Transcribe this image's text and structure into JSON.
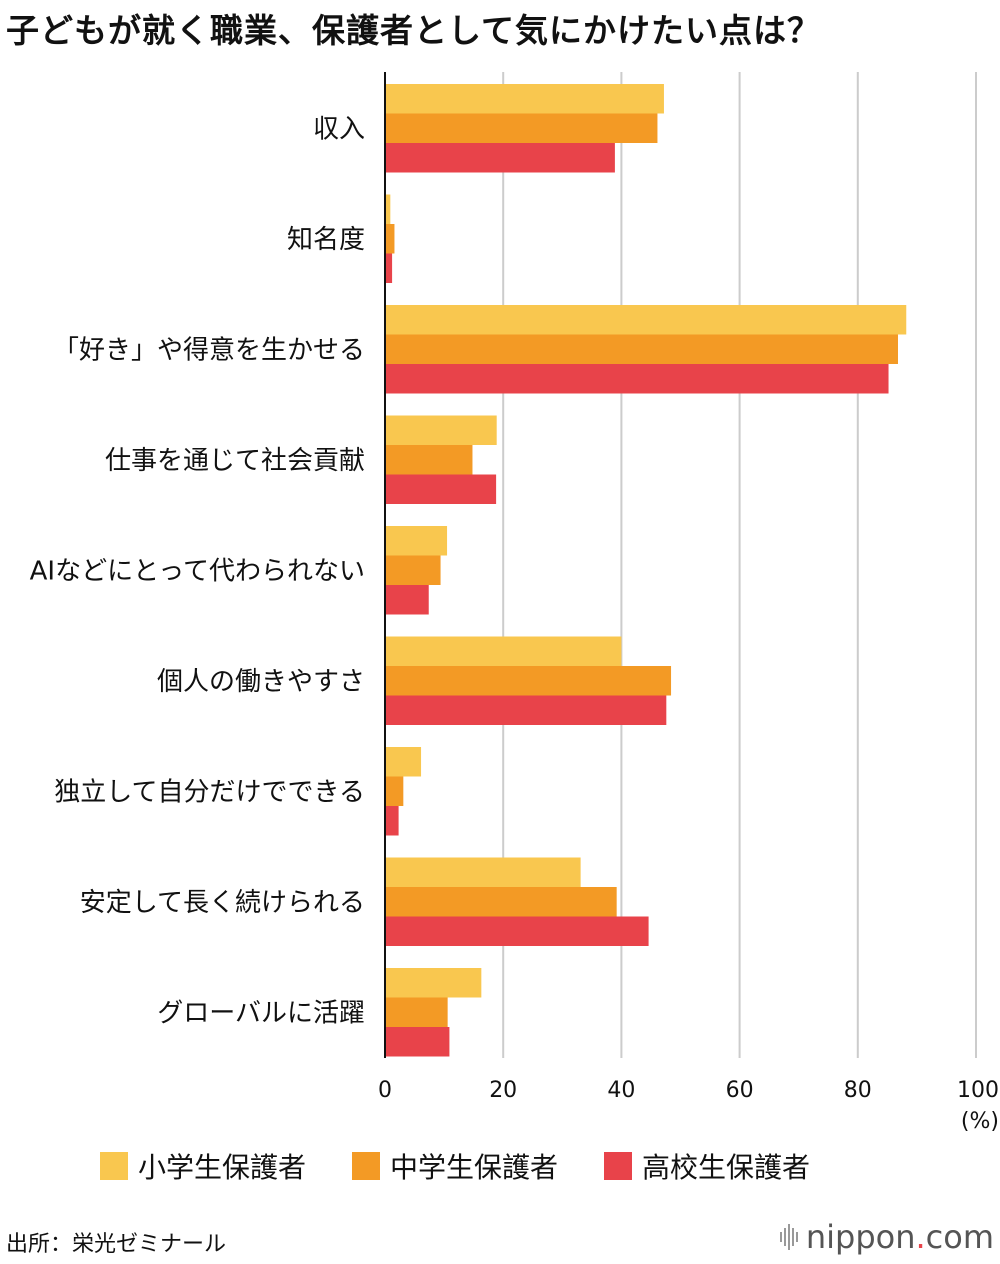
{
  "title": "子どもが就く職業、保護者として気にかけたい点は？",
  "chart_data": {
    "type": "bar",
    "orientation": "horizontal",
    "categories": [
      "収入",
      "知名度",
      "「好き」や得意を生かせる",
      "仕事を通じて社会貢献",
      "AIなどにとって代わられない",
      "個人の働きやすさ",
      "独立して自分だけでできる",
      "安定して長く続けられる",
      "グローバルに活躍"
    ],
    "series": [
      {
        "name": "小学生保護者",
        "color": "#f9c74f",
        "values": [
          47.2,
          0.9,
          88.2,
          18.9,
          10.5,
          40.0,
          6.1,
          33.1,
          16.3
        ]
      },
      {
        "name": "中学生保護者",
        "color": "#f39a25",
        "values": [
          46.1,
          1.6,
          86.8,
          14.8,
          9.4,
          48.4,
          3.1,
          39.2,
          10.6
        ]
      },
      {
        "name": "高校生保護者",
        "color": "#e8434a",
        "values": [
          38.9,
          1.2,
          85.2,
          18.8,
          7.4,
          47.6,
          2.3,
          44.6,
          10.9
        ]
      }
    ],
    "x_ticks": [
      "0",
      "20",
      "40",
      "60",
      "80",
      "100"
    ],
    "x_unit": "(%)",
    "xlim": [
      0,
      100
    ],
    "grid": true,
    "legend_position": "bottom"
  },
  "source": "出所：栄光ゼミナール",
  "logo": {
    "text": "nippon",
    "dot": ".",
    "suffix": "com"
  }
}
